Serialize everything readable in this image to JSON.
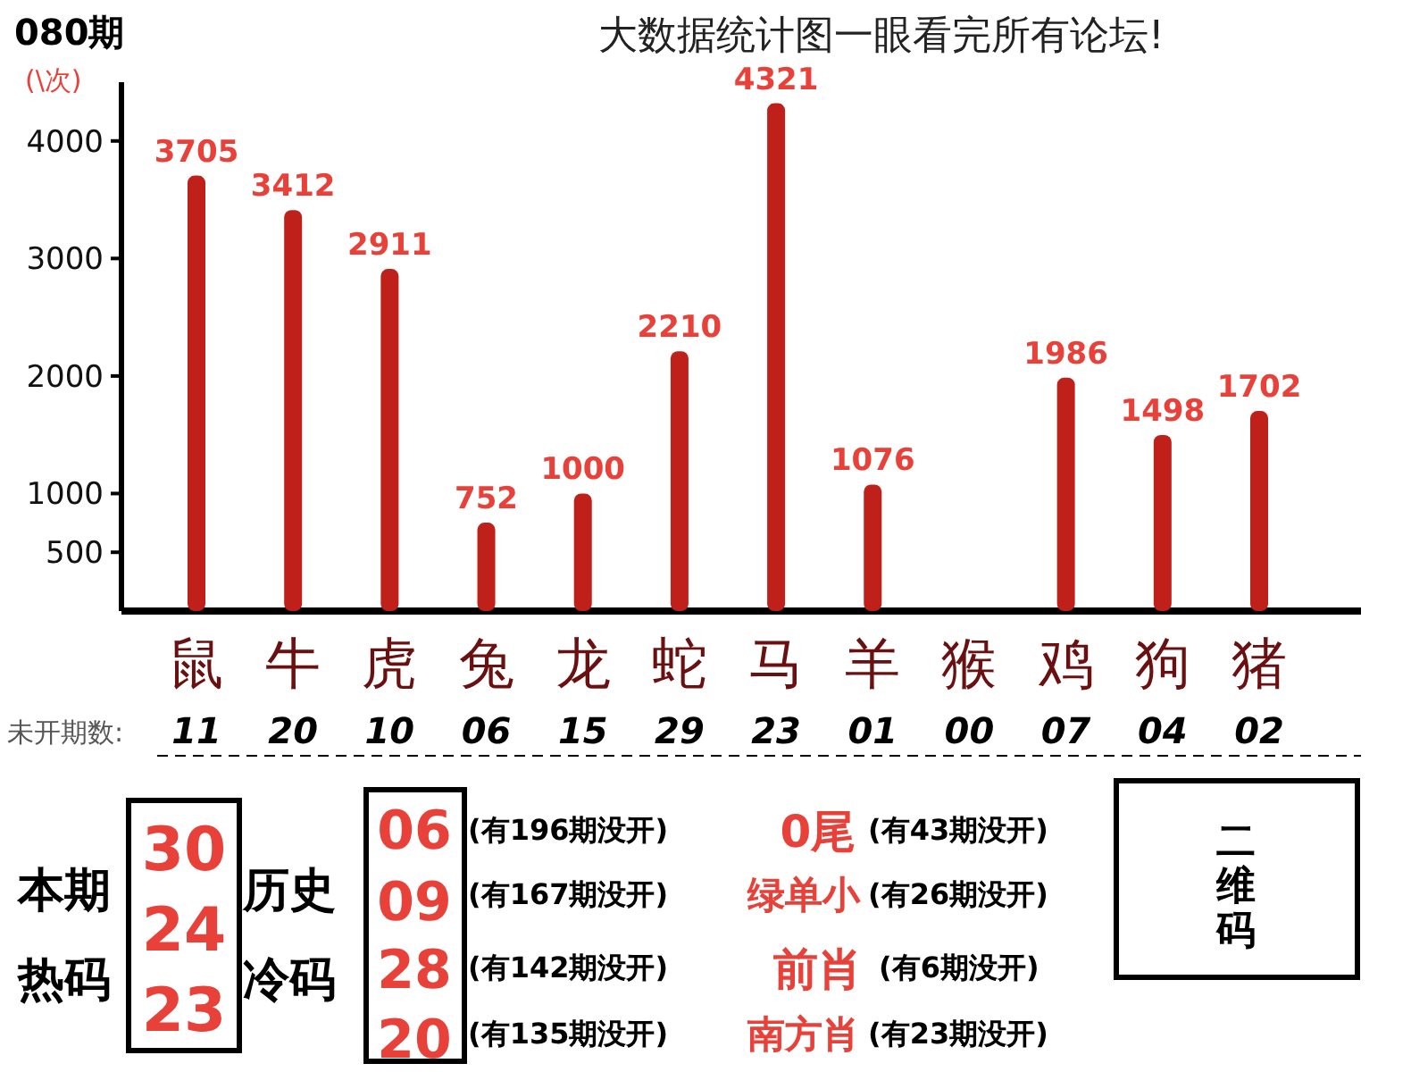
{
  "chart_data": [
    {
      "type": "bar",
      "title": "080期",
      "subtitle": "大数据统计图一眼看完所有论坛!",
      "ylabel": "(\\次)",
      "categories": [
        "鼠",
        "牛",
        "虎",
        "兔",
        "龙",
        "蛇",
        "马",
        "羊",
        "猴",
        "鸡",
        "狗",
        "猪"
      ],
      "values": [
        3705,
        3412,
        2911,
        752,
        1000,
        2210,
        4321,
        1076,
        0,
        1986,
        1498,
        1702
      ],
      "value_labels": [
        "3705",
        "3412",
        "2911",
        "752",
        "1000",
        "2210",
        "4321",
        "1076",
        null,
        "1986",
        "1498",
        "1702"
      ],
      "color": "#c0201a",
      "ylim": [
        0,
        4500
      ],
      "yticks": [
        500,
        1000,
        2000,
        3000,
        4000
      ],
      "grid": false,
      "annotations": [
        "未开期数:",
        "11",
        "20",
        "10",
        "06",
        "15",
        "29",
        "23",
        "01",
        "00",
        "07",
        "04",
        "02"
      ]
    },
    {
      "type": "other",
      "annotations": [
        "本期",
        "热码",
        "30",
        "24",
        "23",
        "历史",
        "冷码",
        "06",
        "09",
        "28",
        "20",
        "(有196期没开)",
        "(有167期没开)",
        "(有142期没开)",
        "(有135期没开)",
        "0尾",
        "绿单小",
        "前肖",
        "南方肖",
        "(有43期没开)",
        "(有26期没开)",
        "(有6期没开)",
        "(有23期没开)",
        "二维码"
      ]
    }
  ]
}
